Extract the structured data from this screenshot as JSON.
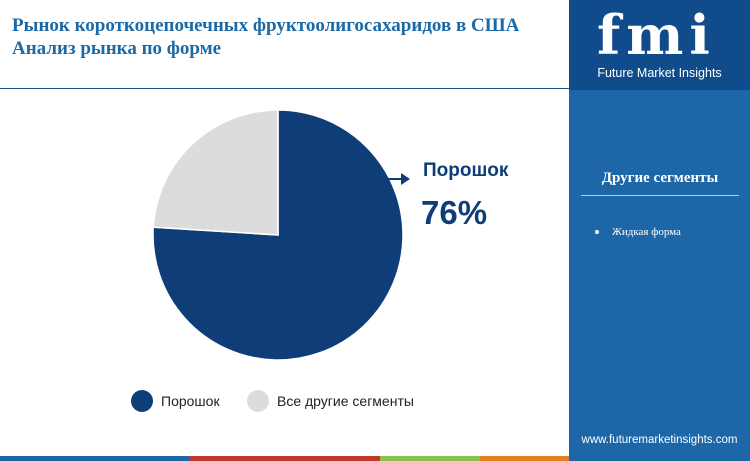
{
  "header": {
    "title_line1": "Рынок короткоцепочечных фруктоолигосахаридов в США",
    "title_line2": "Анализ рынка  по форме"
  },
  "sidebar": {
    "logo_letters": "fmi",
    "logo_subtitle": "Future Market Insights",
    "segments_title": "Другие сегменты",
    "segments": [
      "Жидкая форма"
    ],
    "website": "www.futuremarketinsights.com",
    "background_color": "#1d66a8"
  },
  "chart_data": {
    "type": "pie",
    "title": "",
    "slices": [
      {
        "label": "Порошок",
        "value": 76,
        "color": "#0f3d78"
      },
      {
        "label": "Все другие сегменты",
        "value": 24,
        "color": "#dcdcdc"
      }
    ],
    "highlight": {
      "label": "Порошок",
      "value_text": "76%"
    },
    "legend": {
      "position": "bottom",
      "items": [
        "Порошок",
        "Все другие сегменты"
      ]
    }
  },
  "bottom_bar_colors": [
    "#1d66a8",
    "#c0392b",
    "#8bc34a",
    "#e67e22"
  ]
}
